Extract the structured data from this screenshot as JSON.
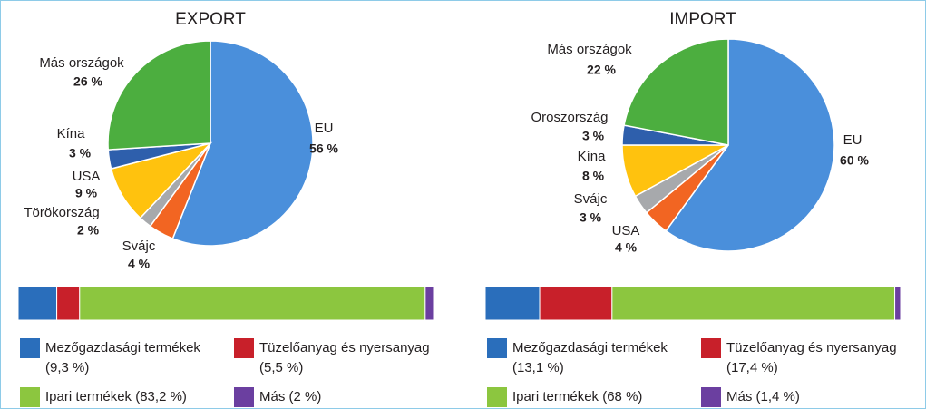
{
  "chart_data": [
    {
      "type": "pie",
      "title": "EXPORT",
      "categories": [
        "EU",
        "Svájc",
        "Törökország",
        "USA",
        "Kína",
        "Más országok"
      ],
      "values": [
        56,
        4,
        2,
        9,
        3,
        26
      ],
      "value_labels": [
        "56 %",
        "4 %",
        "2 %",
        "9 %",
        "3 %",
        "26 %"
      ],
      "colors": [
        "#4a8fdb",
        "#f26522",
        "#a7a9ac",
        "#ffc20e",
        "#2e5fac",
        "#4cae3f"
      ]
    },
    {
      "type": "pie",
      "title": "IMPORT",
      "categories": [
        "EU",
        "USA",
        "Svájc",
        "Kína",
        "Oroszország",
        "Más országok"
      ],
      "values": [
        60,
        4,
        3,
        8,
        3,
        22
      ],
      "value_labels": [
        "60 %",
        "4 %",
        "3 %",
        "8 %",
        "3 %",
        "22 %"
      ],
      "colors": [
        "#4a8fdb",
        "#f26522",
        "#a7a9ac",
        "#ffc20e",
        "#2e5fac",
        "#4cae3f"
      ]
    },
    {
      "type": "stacked_bar",
      "series": [
        {
          "name": "Mezőgazdasági termékek",
          "color": "#2a6ebb",
          "values": [
            9.3
          ],
          "value_labels": [
            "(9,3 %)"
          ]
        },
        {
          "name": "Tüzelőanyag és nyersanyag",
          "color": "#c8202a",
          "values": [
            5.5
          ],
          "value_labels": [
            "(5,5 %)"
          ]
        },
        {
          "name": "Ipari termékek",
          "color": "#8cc63f",
          "values": [
            83.2
          ],
          "value_labels": [
            "(83,2 %)"
          ]
        },
        {
          "name": "Más",
          "color": "#6b3fa0",
          "values": [
            2
          ],
          "value_labels": [
            "(2 %)"
          ]
        }
      ]
    },
    {
      "type": "stacked_bar",
      "series": [
        {
          "name": "Mezőgazdasági termékek",
          "color": "#2a6ebb",
          "values": [
            13.1
          ],
          "value_labels": [
            "(13,1 %)"
          ]
        },
        {
          "name": "Tüzelőanyag és nyersanyag",
          "color": "#c8202a",
          "values": [
            17.4
          ],
          "value_labels": [
            "(17,4 %)"
          ]
        },
        {
          "name": "Ipari termékek",
          "color": "#8cc63f",
          "values": [
            68
          ],
          "value_labels": [
            "(68 %)"
          ]
        },
        {
          "name": "Más",
          "color": "#6b3fa0",
          "values": [
            1.4
          ],
          "value_labels": [
            "(1,4 %)"
          ]
        }
      ]
    }
  ]
}
